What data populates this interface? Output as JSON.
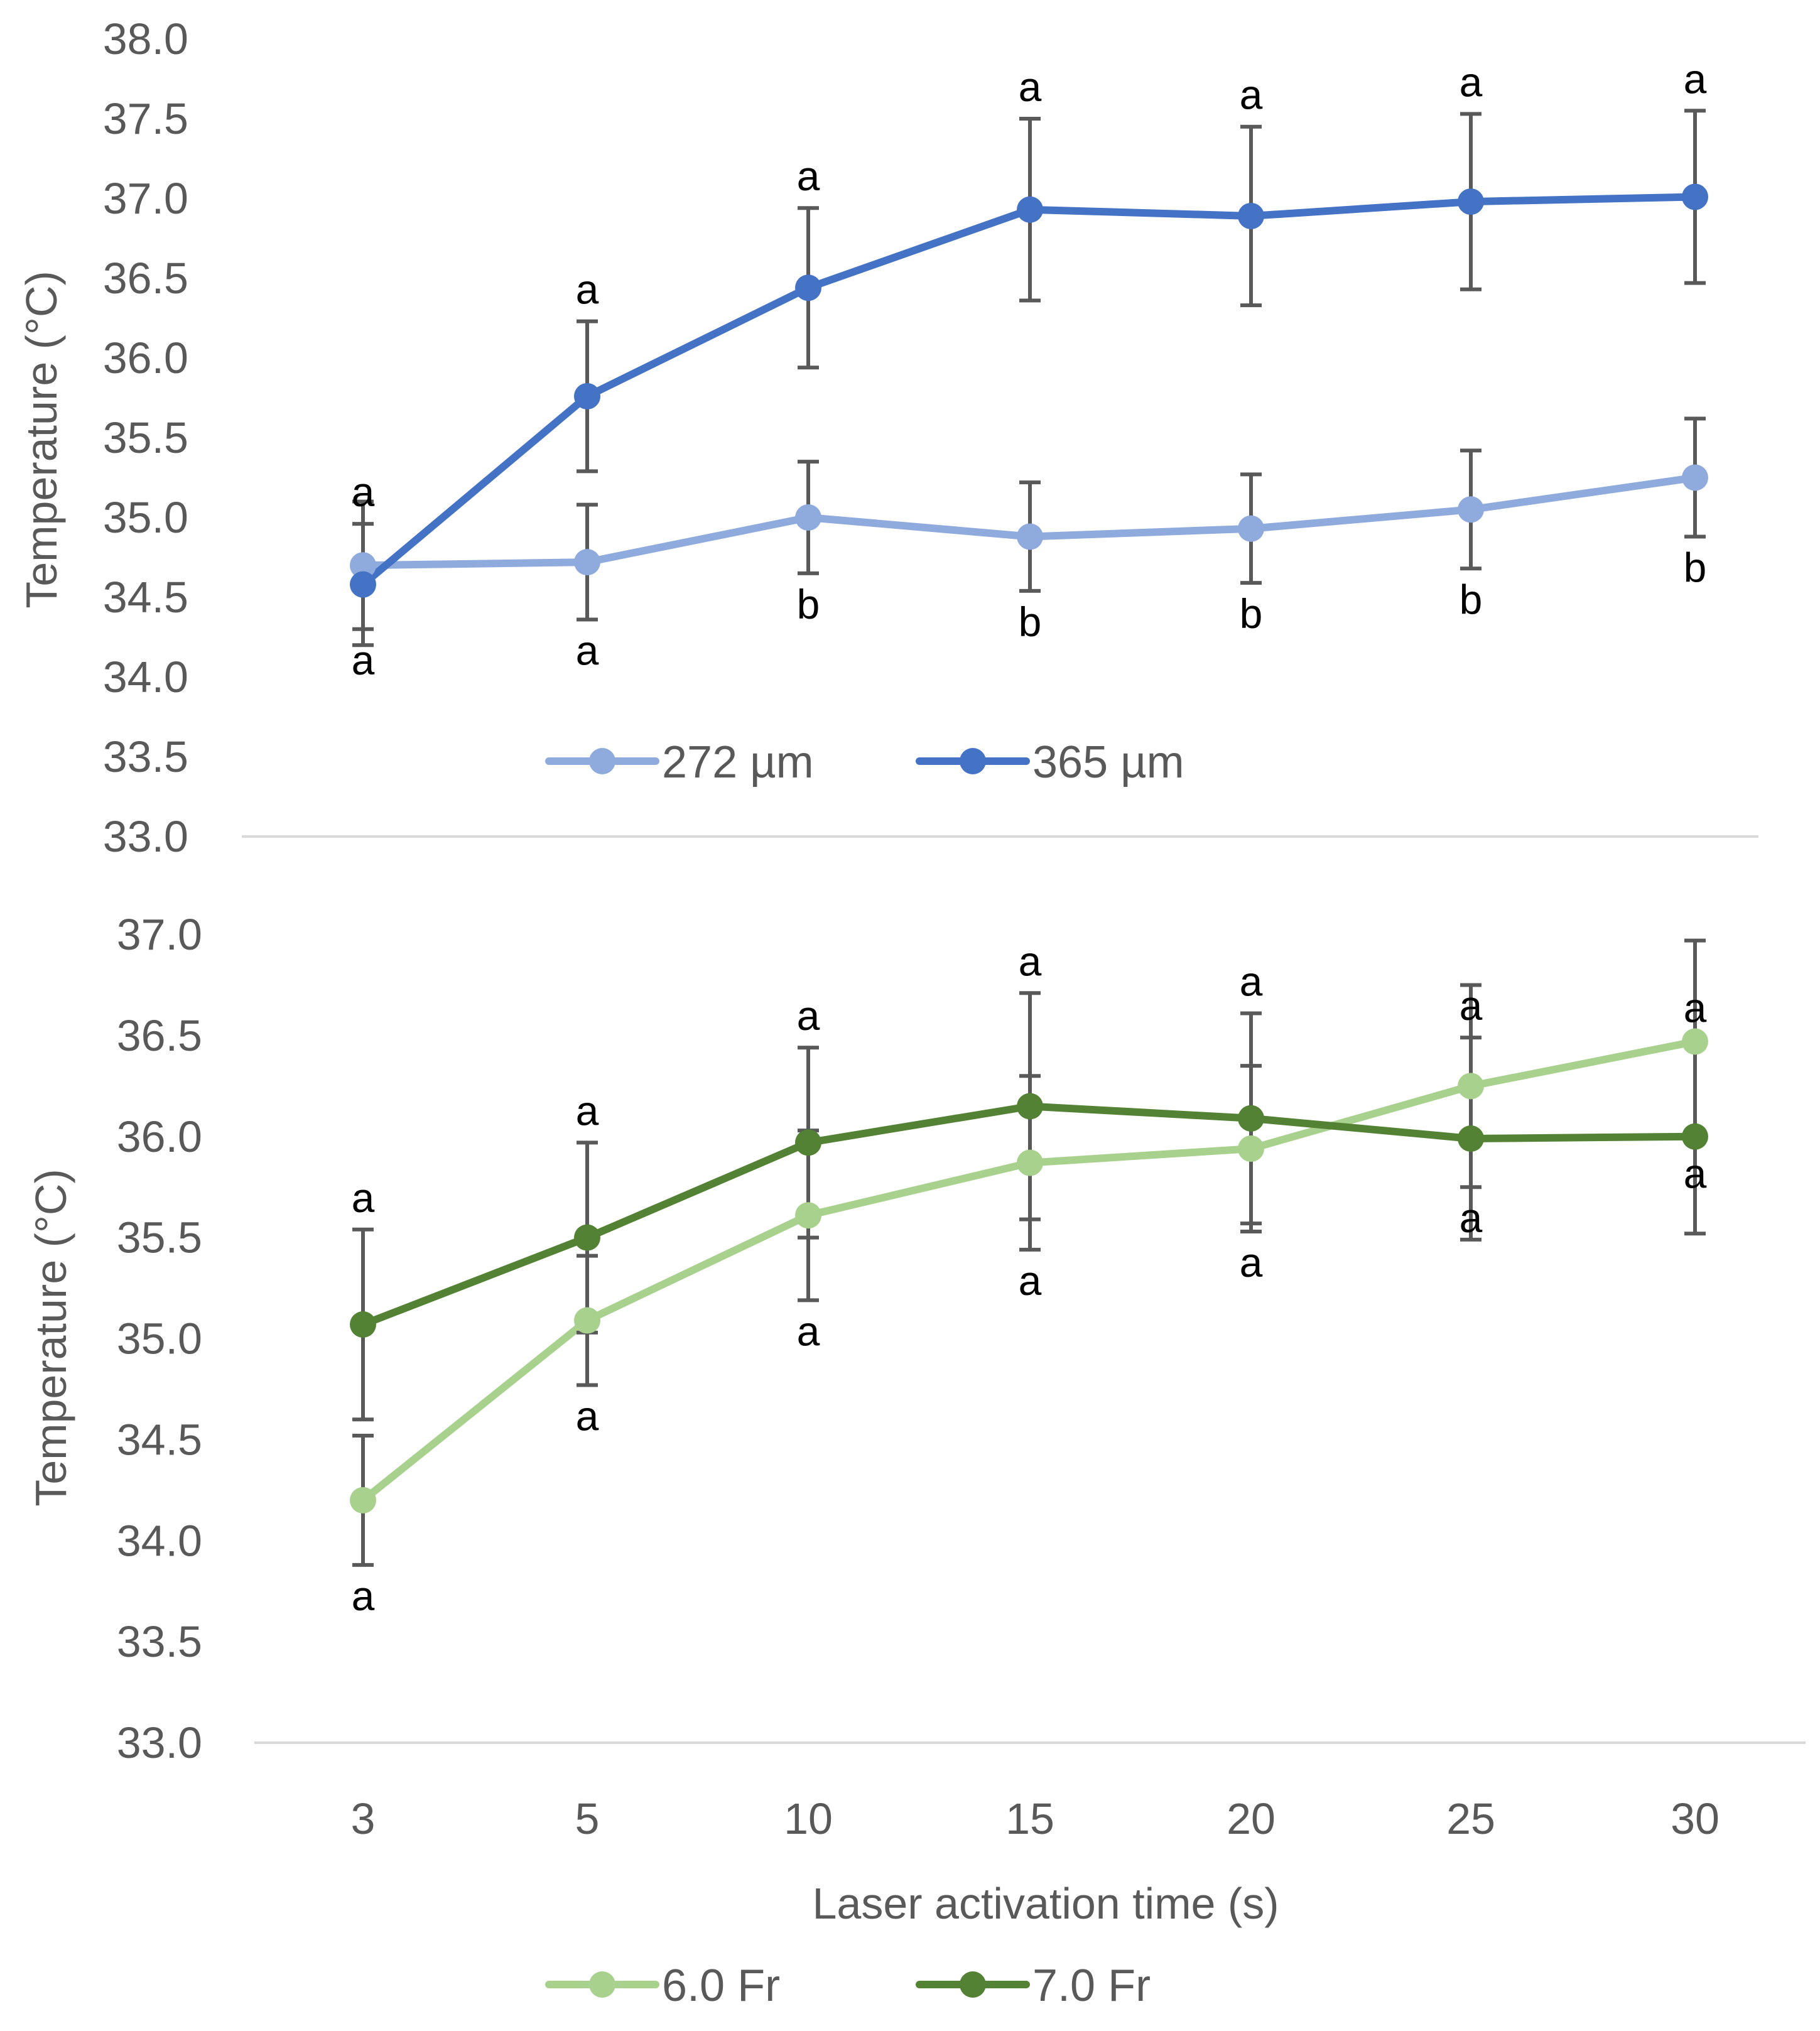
{
  "chart_data": [
    {
      "type": "line",
      "id": "top",
      "ylabel": "Temperature (°C)",
      "ylim": [
        33.0,
        38.0
      ],
      "ytick_step": 0.5,
      "categories": [
        "3",
        "5",
        "10",
        "15",
        "20",
        "25",
        "30"
      ],
      "series": [
        {
          "name": "272 µm",
          "color": "#8FAADC",
          "values": [
            34.7,
            34.72,
            35.0,
            34.88,
            34.93,
            35.05,
            35.25
          ],
          "err": [
            0.4,
            0.36,
            0.35,
            0.34,
            0.34,
            0.37,
            0.37
          ],
          "letters": [
            "a",
            "a",
            "b",
            "b",
            "b",
            "b",
            "b"
          ],
          "letter_pos": "below"
        },
        {
          "name": "365 µm",
          "color": "#4472C4",
          "values": [
            34.58,
            35.76,
            36.44,
            36.93,
            36.89,
            36.98,
            37.01
          ],
          "err": [
            0.38,
            0.47,
            0.5,
            0.57,
            0.56,
            0.55,
            0.54
          ],
          "letters": [
            "a",
            "a",
            "a",
            "a",
            "a",
            "a",
            "a"
          ],
          "letter_pos": "above"
        }
      ]
    },
    {
      "type": "line",
      "id": "bottom",
      "ylabel": "Temperature (°C)",
      "xlabel": "Laser activation time (s)",
      "ylim": [
        33.0,
        37.0
      ],
      "ytick_step": 0.5,
      "categories": [
        "3",
        "5",
        "10",
        "15",
        "20",
        "25",
        "30"
      ],
      "series": [
        {
          "name": "6.0 Fr",
          "color": "#A9D18E",
          "values": [
            34.2,
            35.09,
            35.61,
            35.87,
            35.94,
            36.25,
            36.47
          ],
          "err": [
            0.32,
            0.32,
            0.42,
            0.43,
            0.41,
            0.5,
            0.5
          ],
          "letters": [
            "a",
            "a",
            "a",
            "a",
            "a",
            "a",
            "a"
          ],
          "letter_pos": "below"
        },
        {
          "name": "7.0 Fr",
          "color": "#548235",
          "values": [
            35.07,
            35.5,
            35.97,
            36.15,
            36.09,
            35.99,
            36.0
          ],
          "err": [
            0.47,
            0.47,
            0.47,
            0.56,
            0.52,
            0.5,
            0.48
          ],
          "letters": [
            "a",
            "a",
            "a",
            "a",
            "a",
            "a",
            "a"
          ],
          "letter_pos": "above"
        }
      ]
    }
  ]
}
